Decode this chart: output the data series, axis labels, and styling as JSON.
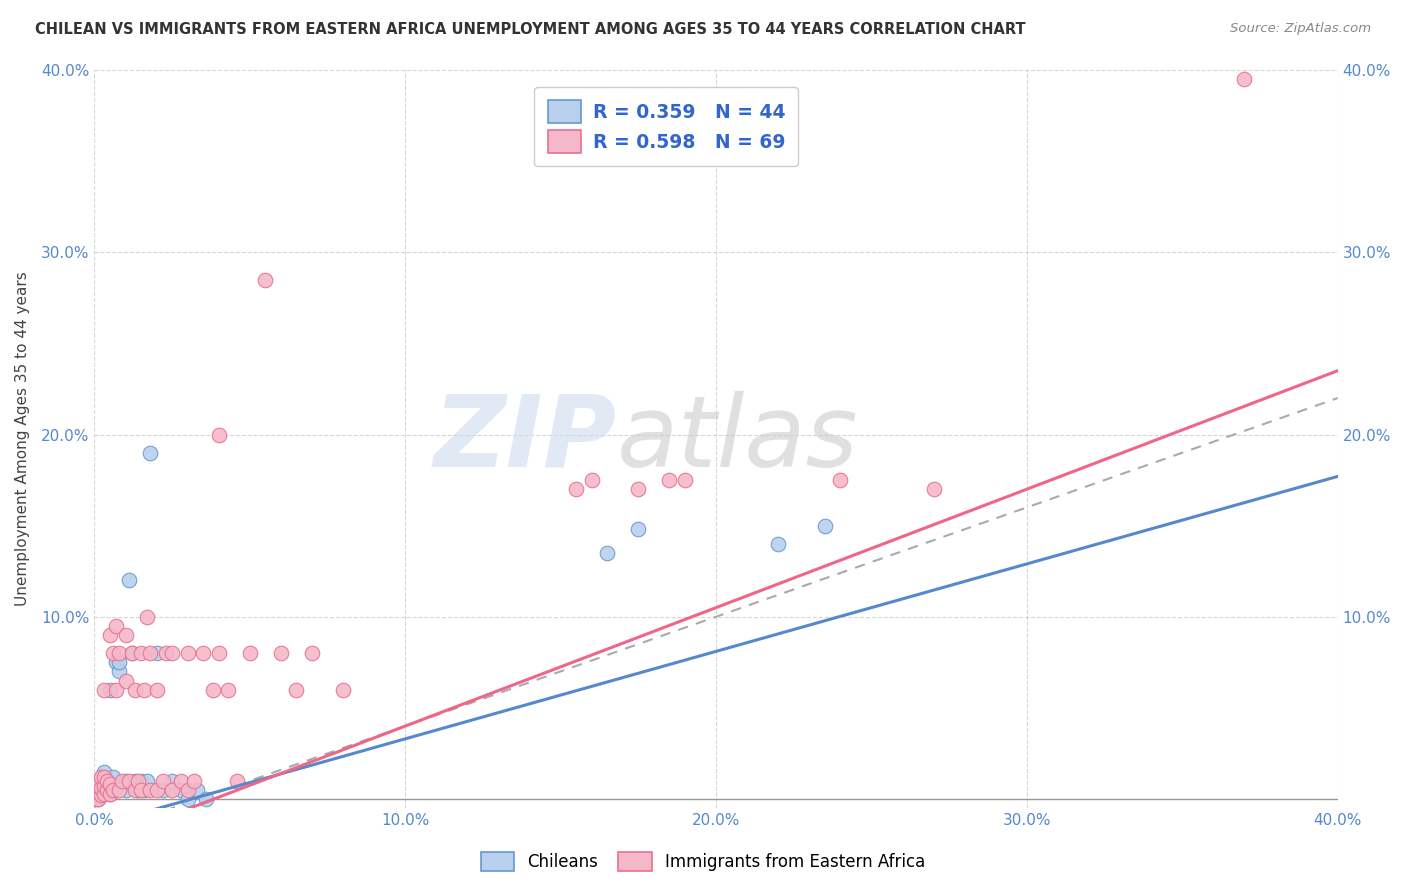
{
  "title": "CHILEAN VS IMMIGRANTS FROM EASTERN AFRICA UNEMPLOYMENT AMONG AGES 35 TO 44 YEARS CORRELATION CHART",
  "source": "Source: ZipAtlas.com",
  "ylabel": "Unemployment Among Ages 35 to 44 years",
  "xlim": [
    0.0,
    0.4
  ],
  "ylim": [
    -0.005,
    0.4
  ],
  "xticks": [
    0.0,
    0.1,
    0.2,
    0.3,
    0.4
  ],
  "yticks": [
    0.0,
    0.1,
    0.2,
    0.3,
    0.4
  ],
  "xtick_labels": [
    "0.0%",
    "10.0%",
    "20.0%",
    "30.0%",
    "40.0%"
  ],
  "ytick_labels_left": [
    "",
    "10.0%",
    "20.0%",
    "30.0%",
    "40.0%"
  ],
  "ytick_labels_right": [
    "",
    "10.0%",
    "20.0%",
    "30.0%",
    "40.0%"
  ],
  "background_color": "#ffffff",
  "grid_color": "#cccccc",
  "watermark_zip": "ZIP",
  "watermark_atlas": "atlas",
  "chilean_fill": "#b8d0ee",
  "chilean_edge": "#6699cc",
  "immigrant_fill": "#f5b8c8",
  "immigrant_edge": "#e87090",
  "chilean_line_color": "#5588cc",
  "immigrant_line_color": "#ee6688",
  "overall_line_color": "#aaaaaa",
  "legend_text_color": "#3366cc",
  "title_color": "#333333",
  "source_color": "#888888",
  "tick_color": "#5588cc",
  "chilean_line_slope": 0.48,
  "chilean_line_intercept": -0.015,
  "immigrant_line_slope": 0.65,
  "immigrant_line_intercept": -0.025,
  "overall_line_slope": 0.6,
  "overall_line_intercept": -0.02,
  "chilean_scatter_x": [
    0.0,
    0.0,
    0.0,
    0.001,
    0.001,
    0.001,
    0.001,
    0.002,
    0.002,
    0.002,
    0.003,
    0.003,
    0.003,
    0.004,
    0.004,
    0.005,
    0.005,
    0.005,
    0.006,
    0.006,
    0.007,
    0.008,
    0.008,
    0.01,
    0.01,
    0.011,
    0.012,
    0.013,
    0.014,
    0.015,
    0.016,
    0.017,
    0.018,
    0.02,
    0.022,
    0.025,
    0.028,
    0.03,
    0.033,
    0.036,
    0.165,
    0.175,
    0.22,
    0.235
  ],
  "chilean_scatter_y": [
    0.0,
    0.002,
    0.005,
    0.0,
    0.003,
    0.006,
    0.008,
    0.002,
    0.005,
    0.01,
    0.003,
    0.007,
    0.015,
    0.005,
    0.01,
    0.003,
    0.008,
    0.06,
    0.005,
    0.012,
    0.075,
    0.07,
    0.075,
    0.005,
    0.01,
    0.12,
    0.08,
    0.01,
    0.005,
    0.01,
    0.005,
    0.01,
    0.19,
    0.08,
    0.005,
    0.01,
    0.005,
    0.0,
    0.005,
    0.0,
    0.135,
    0.148,
    0.14,
    0.15
  ],
  "immigrant_scatter_x": [
    0.0,
    0.0,
    0.0,
    0.001,
    0.001,
    0.001,
    0.001,
    0.002,
    0.002,
    0.002,
    0.003,
    0.003,
    0.003,
    0.003,
    0.004,
    0.004,
    0.005,
    0.005,
    0.005,
    0.006,
    0.006,
    0.007,
    0.007,
    0.008,
    0.008,
    0.009,
    0.01,
    0.01,
    0.011,
    0.012,
    0.013,
    0.013,
    0.014,
    0.015,
    0.015,
    0.016,
    0.017,
    0.018,
    0.018,
    0.02,
    0.02,
    0.022,
    0.023,
    0.025,
    0.025,
    0.028,
    0.03,
    0.03,
    0.032,
    0.035,
    0.038,
    0.04,
    0.043,
    0.046,
    0.05,
    0.055,
    0.06,
    0.065,
    0.07,
    0.08,
    0.155,
    0.16,
    0.175,
    0.185,
    0.19,
    0.24,
    0.27,
    0.37,
    0.04
  ],
  "immigrant_scatter_y": [
    0.0,
    0.003,
    0.006,
    0.0,
    0.004,
    0.007,
    0.01,
    0.002,
    0.006,
    0.012,
    0.003,
    0.007,
    0.012,
    0.06,
    0.005,
    0.01,
    0.003,
    0.008,
    0.09,
    0.005,
    0.08,
    0.06,
    0.095,
    0.005,
    0.08,
    0.01,
    0.065,
    0.09,
    0.01,
    0.08,
    0.005,
    0.06,
    0.01,
    0.005,
    0.08,
    0.06,
    0.1,
    0.005,
    0.08,
    0.005,
    0.06,
    0.01,
    0.08,
    0.005,
    0.08,
    0.01,
    0.005,
    0.08,
    0.01,
    0.08,
    0.06,
    0.08,
    0.06,
    0.01,
    0.08,
    0.285,
    0.08,
    0.06,
    0.08,
    0.06,
    0.17,
    0.175,
    0.17,
    0.175,
    0.175,
    0.175,
    0.17,
    0.395,
    0.2
  ]
}
